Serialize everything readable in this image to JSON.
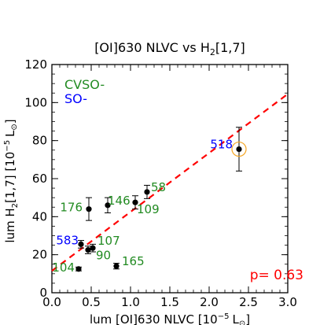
{
  "chart_data": {
    "type": "scatter",
    "title": "[OI]630 NLVC vs H",
    "title_sub": "2",
    "title_suffix": "[1,7]",
    "xlabel": "lum [OI]630 NLVC [10",
    "xlabel_sup": "−5",
    "xlabel_unit": "L",
    "xlabel_unit_sub": "⊙",
    "xlabel_close": "]",
    "ylabel": "lum H",
    "ylabel_sub": "2",
    "ylabel_mid": "[1,7] [10",
    "ylabel_sup": "−5",
    "ylabel_unit": "L",
    "ylabel_unit_sub": "⊙",
    "ylabel_close": "]",
    "xlim": [
      0.0,
      3.0
    ],
    "ylim": [
      0,
      120
    ],
    "xticks": [
      0.0,
      0.5,
      1.0,
      1.5,
      2.0,
      2.5,
      3.0
    ],
    "xtick_labels": [
      "0.0",
      "0.5",
      "1.0",
      "1.5",
      "2.0",
      "2.5",
      "3.0"
    ],
    "yticks": [
      0,
      20,
      40,
      60,
      80,
      100,
      120
    ],
    "ytick_labels": [
      "0",
      "20",
      "40",
      "60",
      "80",
      "100",
      "120"
    ],
    "legend": [
      {
        "label": "CVSO-",
        "color": "#228b22"
      },
      {
        "label": "SO-",
        "color": "#0000ff"
      }
    ],
    "points": [
      {
        "label": "518",
        "x": 2.38,
        "y": 75.5,
        "yerr": 11.5,
        "color": "#0000ff",
        "circled": true
      },
      {
        "label": "58",
        "x": 1.21,
        "y": 53,
        "yerr": 3.5,
        "color": "#228b22"
      },
      {
        "label": "109",
        "x": 1.06,
        "y": 47.5,
        "yerr": 3.5,
        "color": "#228b22"
      },
      {
        "label": "146",
        "x": 0.71,
        "y": 46,
        "yerr": 4,
        "color": "#228b22"
      },
      {
        "label": "176",
        "x": 0.47,
        "y": 44,
        "yerr": 6,
        "color": "#228b22"
      },
      {
        "label": "583",
        "x": 0.37,
        "y": 25.5,
        "yerr": 2,
        "color": "#0000ff"
      },
      {
        "label": "107",
        "x": 0.52,
        "y": 23.5,
        "yerr": 2,
        "color": "#228b22"
      },
      {
        "label": "90",
        "x": 0.46,
        "y": 22.5,
        "yerr": 2,
        "color": "#228b22"
      },
      {
        "label": "165",
        "x": 0.82,
        "y": 14,
        "yerr": 1.5,
        "color": "#228b22"
      },
      {
        "label": "104",
        "x": 0.34,
        "y": 12.5,
        "yerr": 1,
        "color": "#228b22"
      }
    ],
    "fit_line": {
      "x": [
        0.0,
        3.0
      ],
      "y": [
        11.5,
        104.5
      ],
      "color": "#ff0000",
      "style": "dashed"
    },
    "annotation": {
      "text": "p= 0.63",
      "color": "#ff0000",
      "position": "bottom-right"
    },
    "grid": false
  }
}
